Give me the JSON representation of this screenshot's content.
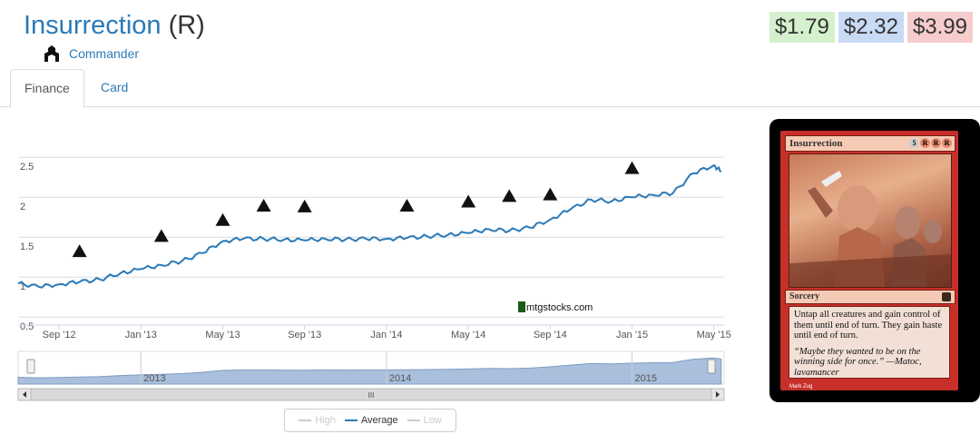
{
  "card": {
    "name": "Insurrection",
    "rarity": "(R)",
    "set_name": "Commander",
    "set_icon": "commander-set-icon"
  },
  "prices": {
    "low": "$1.79",
    "average": "$2.32",
    "high": "$3.99",
    "low_color": "#d4f0cc",
    "average_color": "#c9daf5",
    "high_color": "#f6cccc"
  },
  "tabs": [
    {
      "label": "Finance",
      "active": true
    },
    {
      "label": "Card",
      "active": false
    }
  ],
  "chart_data": {
    "type": "line",
    "title": "",
    "xlabel": "",
    "ylabel": "",
    "ylim": [
      0.4,
      2.9
    ],
    "y_ticks": [
      "0.5",
      "1",
      "1.5",
      "2",
      "2.5"
    ],
    "x_ticks": [
      "Sep '12",
      "Jan '13",
      "May '13",
      "Sep '13",
      "Jan '14",
      "May '14",
      "Sep '14",
      "Jan '15",
      "May '15"
    ],
    "watermark": "mtgstocks.com",
    "grid": true,
    "series": [
      {
        "name": "Average",
        "color": "#2a7ab8",
        "x": [
          "2012-07",
          "2012-08",
          "2012-09",
          "2012-10",
          "2012-11",
          "2012-12",
          "2013-01",
          "2013-02",
          "2013-03",
          "2013-04",
          "2013-05",
          "2013-06",
          "2013-07",
          "2013-08",
          "2013-09",
          "2013-10",
          "2013-11",
          "2013-12",
          "2014-01",
          "2014-02",
          "2014-03",
          "2014-04",
          "2014-05",
          "2014-06",
          "2014-07",
          "2014-08",
          "2014-09",
          "2014-10",
          "2014-11",
          "2014-12",
          "2015-01",
          "2015-02",
          "2015-03",
          "2015-04",
          "2015-05",
          "2015-05b"
        ],
        "values": [
          0.92,
          0.88,
          0.91,
          0.94,
          0.97,
          1.05,
          1.1,
          1.15,
          1.2,
          1.3,
          1.45,
          1.48,
          1.48,
          1.47,
          1.46,
          1.48,
          1.47,
          1.48,
          1.48,
          1.49,
          1.51,
          1.53,
          1.55,
          1.6,
          1.58,
          1.62,
          1.72,
          1.85,
          1.97,
          1.95,
          2.0,
          2.03,
          2.05,
          2.3,
          2.4,
          2.32
        ]
      }
    ],
    "set_release_markers": [
      {
        "name": "return-to-ravnica",
        "x": "2012-10"
      },
      {
        "name": "gatecrash",
        "x": "2013-02"
      },
      {
        "name": "dragons-maze",
        "x": "2013-05"
      },
      {
        "name": "m14",
        "x": "2013-07"
      },
      {
        "name": "theros",
        "x": "2013-09"
      },
      {
        "name": "born-of-the-gods",
        "x": "2014-02"
      },
      {
        "name": "journey-into-nyx",
        "x": "2014-05"
      },
      {
        "name": "m15",
        "x": "2014-07"
      },
      {
        "name": "khans-of-tarkir",
        "x": "2014-09"
      },
      {
        "name": "fate-reforged",
        "x": "2015-01"
      }
    ]
  },
  "navigator": {
    "year_labels": [
      "2013",
      "2014",
      "2015"
    ],
    "scroll_grip": "III"
  },
  "legend": {
    "high": "High",
    "average": "Average",
    "low": "Low"
  },
  "card_image": {
    "name": "Insurrection",
    "mana_cost": [
      "5",
      "R",
      "R",
      "R"
    ],
    "type_line": "Sorcery",
    "rules_text": "Untap all creatures and gain control of them until end of turn. They gain haste until end of turn.",
    "flavor_text": "“Maybe they wanted to be on the winning side for once.” —Matoc, lavamancer",
    "artist": "Mark Zug"
  }
}
